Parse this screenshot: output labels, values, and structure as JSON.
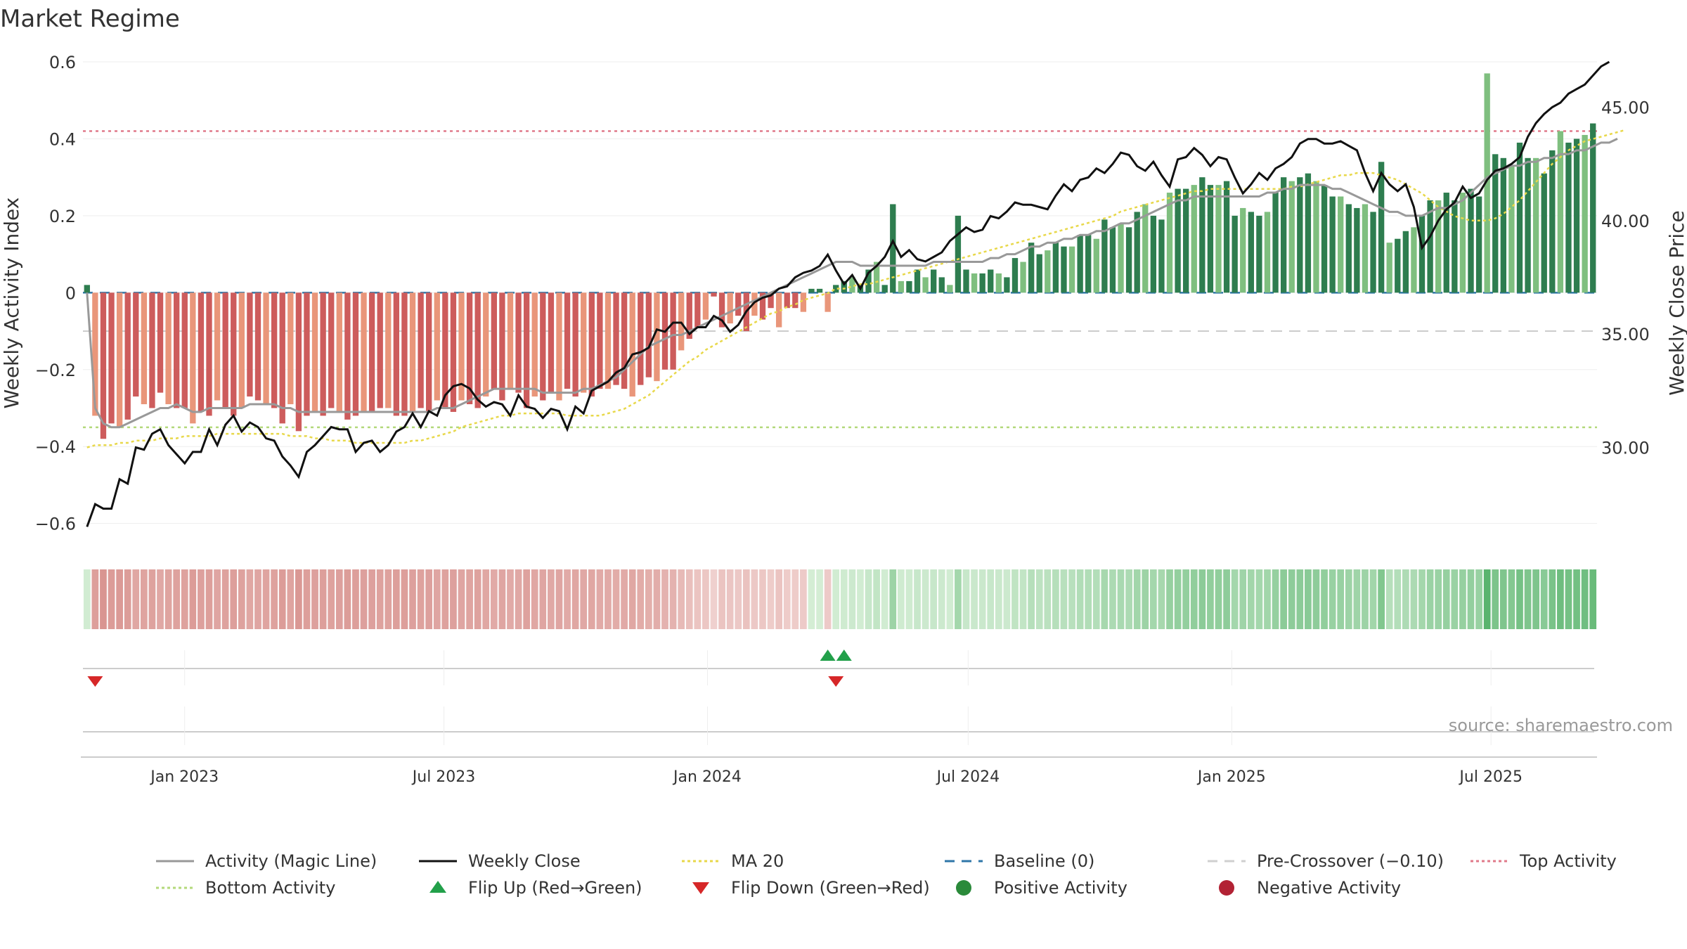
{
  "chart_data": {
    "type": "bar",
    "title": "Market Regime",
    "ylabel_left": "Weekly Activity Index",
    "ylabel_right": "Weekly Close Price",
    "ylim_left": [
      -0.65,
      0.6
    ],
    "ylim_right": [
      25.8,
      47.0
    ],
    "yticks_left": [
      "0.6",
      "0.4",
      "0.2",
      "0",
      "−0.2",
      "−0.4",
      "−0.6"
    ],
    "yticks_right": [
      "45.00",
      "40.00",
      "35.00",
      "30.00"
    ],
    "x_start": "2022-10-22",
    "x_end": "2025-09-13",
    "x_ticks": [
      "Jan 2023",
      "Jul 2023",
      "Jan 2024",
      "Jul 2024",
      "Jan 2025",
      "Jul 2025"
    ],
    "x_tick_dates": [
      "2023-01-01",
      "2023-07-01",
      "2024-01-01",
      "2024-07-01",
      "2025-01-01",
      "2025-07-01"
    ],
    "reference_lines": {
      "baseline": 0,
      "pre_crossover": -0.1,
      "top_activity": 0.42,
      "bottom_activity": -0.35
    },
    "activity_index": [
      0.02,
      -0.32,
      -0.38,
      -0.34,
      -0.35,
      -0.33,
      -0.27,
      -0.29,
      -0.3,
      -0.26,
      -0.29,
      -0.3,
      -0.3,
      -0.34,
      -0.31,
      -0.32,
      -0.28,
      -0.3,
      -0.32,
      -0.3,
      -0.27,
      -0.28,
      -0.29,
      -0.3,
      -0.34,
      -0.29,
      -0.36,
      -0.32,
      -0.31,
      -0.32,
      -0.3,
      -0.31,
      -0.33,
      -0.32,
      -0.31,
      -0.31,
      -0.3,
      -0.3,
      -0.32,
      -0.32,
      -0.31,
      -0.3,
      -0.31,
      -0.28,
      -0.3,
      -0.31,
      -0.28,
      -0.29,
      -0.3,
      -0.27,
      -0.25,
      -0.28,
      -0.25,
      -0.26,
      -0.3,
      -0.27,
      -0.28,
      -0.26,
      -0.28,
      -0.25,
      -0.27,
      -0.26,
      -0.27,
      -0.25,
      -0.25,
      -0.24,
      -0.25,
      -0.27,
      -0.24,
      -0.22,
      -0.23,
      -0.2,
      -0.2,
      -0.15,
      -0.12,
      -0.09,
      -0.07,
      -0.01,
      -0.09,
      -0.08,
      -0.06,
      -0.1,
      -0.06,
      -0.07,
      -0.04,
      -0.09,
      -0.04,
      -0.04,
      -0.05,
      0.01,
      0.01,
      -0.05,
      0.02,
      0.03,
      0.04,
      0.02,
      0.06,
      0.08,
      0.02,
      0.23,
      0.03,
      0.03,
      0.06,
      0.04,
      0.06,
      0.04,
      0.02,
      0.2,
      0.06,
      0.05,
      0.05,
      0.06,
      0.05,
      0.04,
      0.09,
      0.08,
      0.13,
      0.1,
      0.11,
      0.13,
      0.12,
      0.12,
      0.15,
      0.15,
      0.14,
      0.19,
      0.17,
      0.18,
      0.17,
      0.21,
      0.23,
      0.2,
      0.19,
      0.26,
      0.27,
      0.27,
      0.28,
      0.3,
      0.28,
      0.28,
      0.29,
      0.2,
      0.22,
      0.21,
      0.2,
      0.21,
      0.26,
      0.3,
      0.29,
      0.3,
      0.31,
      0.29,
      0.28,
      0.25,
      0.25,
      0.23,
      0.22,
      0.23,
      0.21,
      0.34,
      0.13,
      0.14,
      0.16,
      0.17,
      0.2,
      0.24,
      0.24,
      0.26,
      0.24,
      0.26,
      0.27,
      0.25,
      0.57,
      0.36,
      0.35,
      0.33,
      0.39,
      0.35,
      0.35,
      0.31,
      0.37,
      0.42,
      0.39,
      0.4,
      0.41,
      0.44
    ],
    "weekly_close": [
      26.5,
      27.5,
      27.3,
      27.3,
      28.6,
      28.4,
      30.0,
      29.9,
      30.6,
      30.8,
      30.1,
      29.7,
      29.3,
      29.8,
      29.8,
      30.8,
      30.1,
      31.0,
      31.4,
      30.7,
      31.1,
      30.9,
      30.4,
      30.3,
      29.6,
      29.2,
      28.7,
      29.8,
      30.1,
      30.5,
      30.9,
      30.8,
      30.8,
      29.8,
      30.2,
      30.3,
      29.8,
      30.1,
      30.7,
      30.9,
      31.5,
      30.9,
      31.6,
      31.4,
      32.3,
      32.7,
      32.8,
      32.6,
      32.1,
      31.8,
      32.0,
      31.9,
      31.4,
      32.3,
      31.8,
      31.7,
      31.3,
      31.7,
      31.6,
      30.8,
      31.8,
      31.5,
      32.5,
      32.7,
      32.9,
      33.3,
      33.5,
      34.1,
      34.2,
      34.4,
      35.2,
      35.1,
      35.5,
      35.5,
      35.0,
      35.3,
      35.3,
      35.8,
      35.6,
      35.1,
      35.4,
      36.0,
      36.4,
      36.6,
      36.7,
      37.0,
      37.1,
      37.5,
      37.7,
      37.8,
      38.0,
      38.5,
      37.8,
      37.2,
      37.6,
      37.0,
      37.7,
      38.0,
      38.4,
      39.1,
      38.4,
      38.7,
      38.3,
      38.2,
      38.4,
      38.6,
      39.1,
      39.4,
      39.7,
      39.5,
      39.6,
      40.2,
      40.1,
      40.4,
      40.8,
      40.7,
      40.7,
      40.6,
      40.5,
      41.1,
      41.6,
      41.3,
      41.8,
      41.9,
      42.3,
      42.1,
      42.5,
      43.0,
      42.9,
      42.4,
      42.2,
      42.6,
      42.0,
      41.5,
      42.7,
      42.8,
      43.2,
      42.9,
      42.4,
      42.8,
      42.7,
      41.9,
      41.2,
      41.6,
      42.1,
      41.8,
      42.3,
      42.5,
      42.8,
      43.4,
      43.6,
      43.6,
      43.4,
      43.4,
      43.5,
      43.3,
      43.1,
      42.1,
      41.3,
      42.1,
      41.6,
      41.3,
      41.6,
      40.6,
      38.8,
      39.3,
      40.0,
      40.5,
      40.8,
      41.5,
      41.0,
      41.2,
      41.8,
      42.2,
      42.3,
      42.5,
      42.8,
      43.7,
      44.3,
      44.7,
      45.0,
      45.2,
      45.6,
      45.8,
      46.0,
      46.4,
      46.8,
      47.0
    ],
    "ma20": [
      30.0,
      30.1,
      30.1,
      30.1,
      30.2,
      30.2,
      30.3,
      30.3,
      30.3,
      30.4,
      30.4,
      30.4,
      30.5,
      30.5,
      30.5,
      30.5,
      30.6,
      30.6,
      30.6,
      30.6,
      30.6,
      30.6,
      30.6,
      30.6,
      30.6,
      30.5,
      30.5,
      30.5,
      30.4,
      30.4,
      30.3,
      30.3,
      30.3,
      30.2,
      30.2,
      30.2,
      30.2,
      30.2,
      30.2,
      30.2,
      30.3,
      30.3,
      30.4,
      30.5,
      30.6,
      30.7,
      30.9,
      31.0,
      31.1,
      31.2,
      31.3,
      31.4,
      31.4,
      31.5,
      31.5,
      31.5,
      31.5,
      31.5,
      31.5,
      31.4,
      31.4,
      31.4,
      31.4,
      31.4,
      31.5,
      31.6,
      31.7,
      31.9,
      32.1,
      32.3,
      32.6,
      32.9,
      33.2,
      33.5,
      33.8,
      34.0,
      34.3,
      34.5,
      34.7,
      34.9,
      35.1,
      35.3,
      35.5,
      35.7,
      35.9,
      36.0,
      36.2,
      36.3,
      36.5,
      36.6,
      36.7,
      36.8,
      37.0,
      37.0,
      37.1,
      37.2,
      37.2,
      37.3,
      37.4,
      37.5,
      37.6,
      37.7,
      37.8,
      37.9,
      38.0,
      38.1,
      38.2,
      38.3,
      38.4,
      38.5,
      38.6,
      38.7,
      38.8,
      38.9,
      39.0,
      39.1,
      39.2,
      39.3,
      39.4,
      39.5,
      39.6,
      39.7,
      39.8,
      39.9,
      40.0,
      40.1,
      40.2,
      40.4,
      40.5,
      40.6,
      40.7,
      40.8,
      40.9,
      41.0,
      41.1,
      41.2,
      41.3,
      41.3,
      41.4,
      41.4,
      41.4,
      41.4,
      41.4,
      41.4,
      41.4,
      41.4,
      41.4,
      41.4,
      41.5,
      41.5,
      41.6,
      41.7,
      41.8,
      41.9,
      42.0,
      42.0,
      42.1,
      42.1,
      42.1,
      42.0,
      41.9,
      41.8,
      41.6,
      41.4,
      41.2,
      40.9,
      40.6,
      40.4,
      40.2,
      40.1,
      40.0,
      40.0,
      40.0,
      40.1,
      40.3,
      40.6,
      40.9,
      41.3,
      41.7,
      42.1,
      42.5,
      42.8,
      43.1,
      43.3,
      43.5,
      43.6,
      43.7,
      43.8,
      43.9,
      44.0
    ],
    "magic_line": [
      0.0,
      -0.3,
      -0.34,
      -0.35,
      -0.35,
      -0.34,
      -0.33,
      -0.32,
      -0.31,
      -0.3,
      -0.3,
      -0.29,
      -0.3,
      -0.31,
      -0.31,
      -0.3,
      -0.3,
      -0.3,
      -0.3,
      -0.3,
      -0.29,
      -0.29,
      -0.29,
      -0.29,
      -0.3,
      -0.3,
      -0.31,
      -0.31,
      -0.31,
      -0.31,
      -0.31,
      -0.31,
      -0.31,
      -0.31,
      -0.31,
      -0.31,
      -0.31,
      -0.31,
      -0.31,
      -0.31,
      -0.31,
      -0.31,
      -0.31,
      -0.3,
      -0.3,
      -0.3,
      -0.29,
      -0.28,
      -0.27,
      -0.26,
      -0.25,
      -0.25,
      -0.25,
      -0.25,
      -0.25,
      -0.25,
      -0.26,
      -0.26,
      -0.26,
      -0.26,
      -0.26,
      -0.25,
      -0.25,
      -0.24,
      -0.23,
      -0.22,
      -0.2,
      -0.18,
      -0.16,
      -0.14,
      -0.13,
      -0.12,
      -0.11,
      -0.11,
      -0.1,
      -0.09,
      -0.08,
      -0.07,
      -0.06,
      -0.05,
      -0.04,
      -0.03,
      -0.02,
      -0.01,
      0.0,
      0.01,
      0.02,
      0.03,
      0.04,
      0.05,
      0.06,
      0.07,
      0.08,
      0.08,
      0.08,
      0.07,
      0.07,
      0.07,
      0.07,
      0.07,
      0.07,
      0.07,
      0.07,
      0.07,
      0.08,
      0.08,
      0.08,
      0.08,
      0.08,
      0.08,
      0.08,
      0.09,
      0.09,
      0.1,
      0.1,
      0.11,
      0.12,
      0.12,
      0.13,
      0.13,
      0.14,
      0.14,
      0.15,
      0.15,
      0.16,
      0.16,
      0.17,
      0.18,
      0.18,
      0.19,
      0.2,
      0.21,
      0.22,
      0.23,
      0.24,
      0.24,
      0.25,
      0.25,
      0.25,
      0.25,
      0.25,
      0.25,
      0.25,
      0.25,
      0.25,
      0.26,
      0.26,
      0.27,
      0.27,
      0.28,
      0.28,
      0.28,
      0.28,
      0.27,
      0.27,
      0.26,
      0.25,
      0.24,
      0.23,
      0.22,
      0.21,
      0.21,
      0.2,
      0.2,
      0.2,
      0.21,
      0.22,
      0.22,
      0.23,
      0.24,
      0.26,
      0.28,
      0.3,
      0.31,
      0.32,
      0.33,
      0.33,
      0.34,
      0.34,
      0.35,
      0.35,
      0.36,
      0.36,
      0.37,
      0.37,
      0.38,
      0.39,
      0.39,
      0.4
    ],
    "flip_markers": [
      {
        "type": "flip_down",
        "index": 1
      },
      {
        "type": "flip_up",
        "index": 91
      },
      {
        "type": "flip_up",
        "index": 93
      },
      {
        "type": "flip_down",
        "index": 92
      }
    ],
    "legend": [
      {
        "label": "Activity (Magic Line)",
        "style": "line",
        "color": "#999999"
      },
      {
        "label": "Weekly Close",
        "style": "line",
        "color": "#111111"
      },
      {
        "label": "MA 20",
        "style": "dotted",
        "color": "#e8d84a"
      },
      {
        "label": "Baseline (0)",
        "style": "dashed",
        "color": "#2f77a8"
      },
      {
        "label": "Pre-Crossover (−0.10)",
        "style": "dashed",
        "color": "#cfcfcf"
      },
      {
        "label": "Top Activity",
        "style": "dotted",
        "color": "#e07a8a"
      },
      {
        "label": "Bottom Activity",
        "style": "dotted",
        "color": "#b3d97a"
      },
      {
        "label": "Flip Up (Red→Green)",
        "style": "triangle-up",
        "color": "#22a04a"
      },
      {
        "label": "Flip Down (Green→Red)",
        "style": "triangle-down",
        "color": "#d62728"
      },
      {
        "label": "Positive Activity",
        "style": "circle",
        "color": "#2a8a3a"
      },
      {
        "label": "Negative Activity",
        "style": "circle",
        "color": "#b22234"
      }
    ],
    "legend_placement": "bottom",
    "colors": {
      "pos_strong": "#2e7d4f",
      "pos_light": "#7fbf7f",
      "neg_strong": "#cd5c5c",
      "neg_light": "#e9967a"
    }
  },
  "source": "source: sharemaestro.com"
}
